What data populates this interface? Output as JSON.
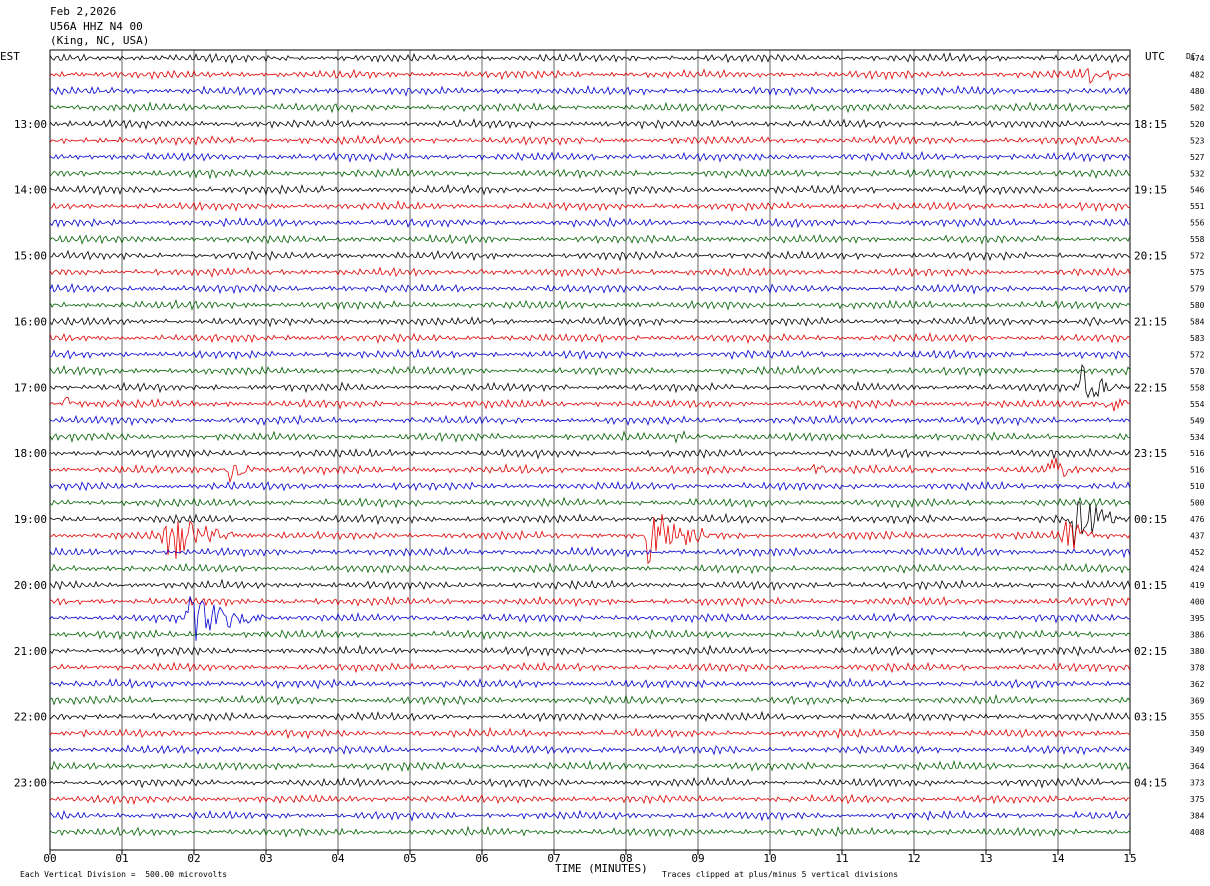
{
  "header": {
    "date": "Feb 2,2026",
    "station": "U56A HHZ N4 00",
    "location": "(King, NC, USA)"
  },
  "footer": {
    "scale_note": "Each Vertical Division =  500.00 microvolts",
    "clip_note": "Traces clipped at plus/minus 5 vertical divisions",
    "x_title": "TIME (MINUTES)"
  },
  "chart_data": {
    "type": "line",
    "title": "",
    "xlabel": "TIME (MINUTES)",
    "ylabel": "",
    "xlim": [
      0,
      15
    ],
    "x_ticks": [
      "00",
      "01",
      "02",
      "03",
      "04",
      "05",
      "06",
      "07",
      "08",
      "09",
      "10",
      "11",
      "12",
      "13",
      "14",
      "15"
    ],
    "left_zone": "EST",
    "right_zone": "UTC",
    "dc_label": "DC",
    "left_hour_labels": [
      {
        "trace": 4,
        "label": "13:00"
      },
      {
        "trace": 8,
        "label": "14:00"
      },
      {
        "trace": 12,
        "label": "15:00"
      },
      {
        "trace": 16,
        "label": "16:00"
      },
      {
        "trace": 20,
        "label": "17:00"
      },
      {
        "trace": 24,
        "label": "18:00"
      },
      {
        "trace": 28,
        "label": "19:00"
      },
      {
        "trace": 32,
        "label": "20:00"
      },
      {
        "trace": 36,
        "label": "21:00"
      },
      {
        "trace": 40,
        "label": "22:00"
      },
      {
        "trace": 44,
        "label": "23:00"
      }
    ],
    "right_hour_labels": [
      {
        "trace": 4,
        "label": "18:15"
      },
      {
        "trace": 8,
        "label": "19:15"
      },
      {
        "trace": 12,
        "label": "20:15"
      },
      {
        "trace": 16,
        "label": "21:15"
      },
      {
        "trace": 20,
        "label": "22:15"
      },
      {
        "trace": 24,
        "label": "23:15"
      },
      {
        "trace": 28,
        "label": "00:15"
      },
      {
        "trace": 32,
        "label": "01:15"
      },
      {
        "trace": 36,
        "label": "02:15"
      },
      {
        "trace": 40,
        "label": "03:15"
      },
      {
        "trace": 44,
        "label": "04:15"
      }
    ],
    "dc_offsets": [
      "474",
      "482",
      "480",
      "502",
      "520",
      "523",
      "527",
      "532",
      "546",
      "551",
      "556",
      "558",
      "572",
      "575",
      "579",
      "580",
      "584",
      "583",
      "572",
      "570",
      "558",
      "554",
      "549",
      "534",
      "516",
      "516",
      "510",
      "500",
      "476",
      "437",
      "452",
      "424",
      "419",
      "400",
      "395",
      "386",
      "380",
      "378",
      "362",
      "369",
      "355",
      "350",
      "349",
      "364",
      "373",
      "375",
      "384",
      "408"
    ],
    "trace_colors": [
      "#000000",
      "#e00000",
      "#0000d0",
      "#006000"
    ],
    "trace_count": 48,
    "minutes_per_trace": 15,
    "events": [
      {
        "trace": 1,
        "minute": 14.3,
        "amp": 2.0,
        "dur": 0.8
      },
      {
        "trace": 13,
        "minute": 5.8,
        "amp": 1.8,
        "dur": 0.4
      },
      {
        "trace": 16,
        "minute": 14.4,
        "amp": 2.0,
        "dur": 0.3
      },
      {
        "trace": 20,
        "minute": 14.3,
        "amp": 5.0,
        "dur": 0.6
      },
      {
        "trace": 21,
        "minute": 0.2,
        "amp": 3.0,
        "dur": 0.2
      },
      {
        "trace": 21,
        "minute": 14.7,
        "amp": 2.5,
        "dur": 0.5
      },
      {
        "trace": 25,
        "minute": 2.5,
        "amp": 3.0,
        "dur": 0.4
      },
      {
        "trace": 25,
        "minute": 10.6,
        "amp": 1.5,
        "dur": 0.3
      },
      {
        "trace": 25,
        "minute": 13.9,
        "amp": 3.0,
        "dur": 0.4
      },
      {
        "trace": 28,
        "minute": 14.2,
        "amp": 6.0,
        "dur": 0.7
      },
      {
        "trace": 29,
        "minute": 1.6,
        "amp": 6.5,
        "dur": 1.0
      },
      {
        "trace": 29,
        "minute": 8.3,
        "amp": 7.0,
        "dur": 0.9
      },
      {
        "trace": 29,
        "minute": 14.1,
        "amp": 4.0,
        "dur": 0.5
      },
      {
        "trace": 34,
        "minute": 1.9,
        "amp": 5.5,
        "dur": 1.2
      },
      {
        "trace": 23,
        "minute": 8.6,
        "amp": 1.5,
        "dur": 0.6
      }
    ]
  }
}
